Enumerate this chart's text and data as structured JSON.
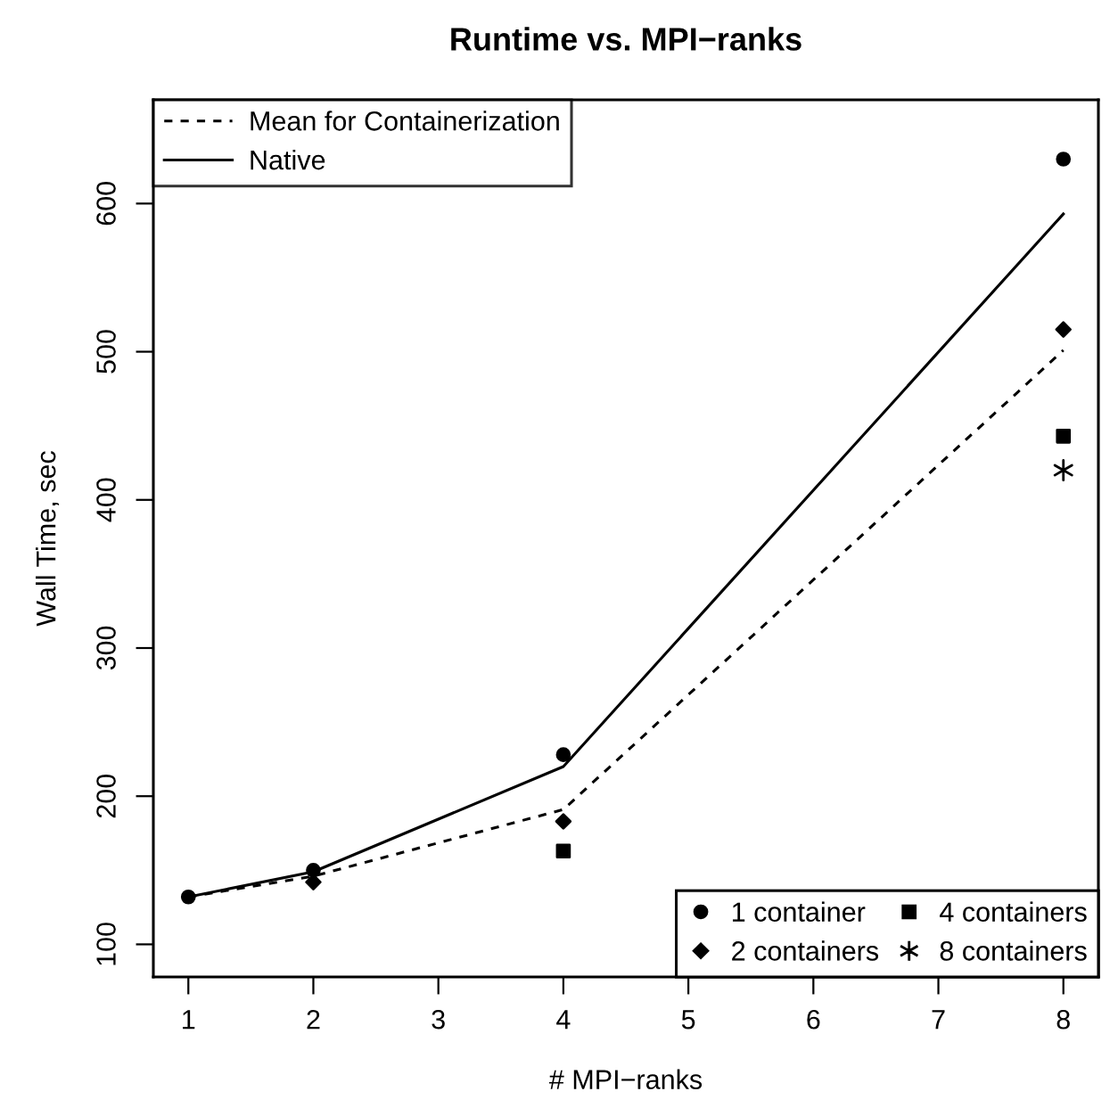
{
  "chart_data": {
    "type": "line",
    "title": "Runtime vs. MPI−ranks",
    "xlabel": "# MPI−ranks",
    "ylabel": "Wall Time, sec",
    "xlim": [
      0.72,
      8.28
    ],
    "ylim": [
      78,
      670
    ],
    "xticks": [
      1,
      2,
      3,
      4,
      5,
      6,
      7,
      8
    ],
    "yticks": [
      100,
      200,
      300,
      400,
      500,
      600
    ],
    "grid": false,
    "legend": "top left",
    "series": [
      {
        "name": "Mean for Containerization",
        "color": "#000000",
        "line_style": "dashed",
        "marker": "none",
        "x": [
          1,
          2,
          4,
          8
        ],
        "values": [
          132,
          146,
          191,
          501
        ]
      },
      {
        "name": "Native",
        "color": "#000000",
        "line_style": "solid",
        "marker": "none",
        "x": [
          1,
          2,
          4,
          8
        ],
        "values": [
          132,
          149,
          220,
          593
        ]
      },
      {
        "name": "1 container",
        "type": "scatter",
        "color": "#000000",
        "marker": "circle",
        "x": [
          1,
          2,
          4,
          8
        ],
        "values": [
          132,
          150,
          228,
          630
        ]
      },
      {
        "name": "2 containers",
        "type": "scatter",
        "color": "#000000",
        "marker": "diamond",
        "x": [
          2,
          4,
          8
        ],
        "values": [
          142,
          183,
          515
        ]
      },
      {
        "name": "4 containers",
        "type": "scatter",
        "color": "#000000",
        "marker": "square",
        "x": [
          4,
          8
        ],
        "values": [
          163,
          443
        ]
      },
      {
        "name": "8 containers",
        "type": "scatter",
        "color": "#000000",
        "marker": "cross",
        "x": [
          8
        ],
        "values": [
          420
        ]
      }
    ]
  }
}
